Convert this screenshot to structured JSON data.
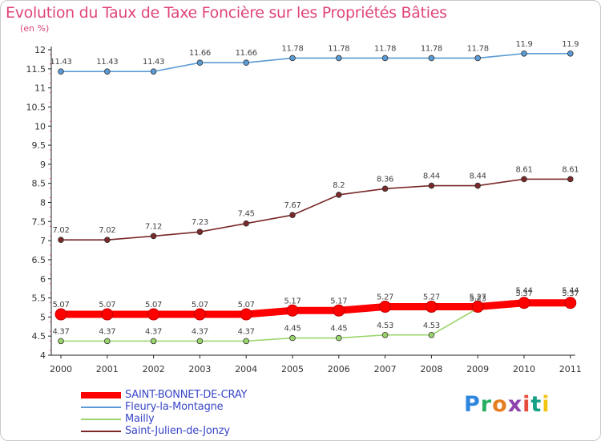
{
  "title": "Evolution du Taux de Taxe Foncière sur les Propriétés Bâties",
  "unit": "(en %)",
  "logo": "Proxiti",
  "chart_data": {
    "type": "line",
    "title": "Evolution du Taux de Taxe Foncière sur les Propriétés Bâties",
    "ylabel": "(en %)",
    "xlabel": "",
    "x": [
      "2000",
      "2001",
      "2002",
      "2003",
      "2004",
      "2005",
      "2006",
      "2007",
      "2008",
      "2009",
      "2010",
      "2011"
    ],
    "ylim": [
      4,
      12
    ],
    "yticks": [
      "4",
      "4.5",
      "5",
      "5.5",
      "6",
      "6.5",
      "7",
      "7.5",
      "8",
      "8.5",
      "9",
      "9.5",
      "10",
      "10.5",
      "11",
      "11.5",
      "12"
    ],
    "grid": false,
    "legend": "bottom-left",
    "series": [
      {
        "name": "SAINT-BONNET-DE-CRAY",
        "color": "#ff0000",
        "values": [
          5.07,
          5.07,
          5.07,
          5.07,
          5.07,
          5.17,
          5.17,
          5.27,
          5.27,
          5.27,
          5.37,
          5.37
        ],
        "labels": [
          "5.07",
          "5.07",
          "5.07",
          "5.07",
          "5.07",
          "5.17",
          "5.17",
          "5.27",
          "5.27",
          "5.27",
          "5.37",
          "5.37"
        ]
      },
      {
        "name": "Fleury-la-Montagne",
        "color": "#5b9bd5",
        "values": [
          11.43,
          11.43,
          11.43,
          11.66,
          11.66,
          11.78,
          11.78,
          11.78,
          11.78,
          11.78,
          11.9,
          11.9
        ],
        "labels": [
          "11.43",
          "11.43",
          "11.43",
          "11.66",
          "11.66",
          "11.78",
          "11.78",
          "11.78",
          "11.78",
          "11.78",
          "11.9",
          "11.9"
        ]
      },
      {
        "name": "Mailly",
        "color": "#9ad56b",
        "values": [
          4.37,
          4.37,
          4.37,
          4.37,
          4.37,
          4.45,
          4.45,
          4.53,
          4.53,
          5.23,
          5.44,
          5.44
        ],
        "labels": [
          "4.37",
          "4.37",
          "4.37",
          "4.37",
          "4.37",
          "4.45",
          "4.45",
          "4.53",
          "4.53",
          "5.23",
          "5.44",
          "5.44"
        ]
      },
      {
        "name": "Saint-Julien-de-Jonzy",
        "color": "#7a2828",
        "values": [
          7.02,
          7.02,
          7.12,
          7.23,
          7.45,
          7.67,
          8.2,
          8.36,
          8.44,
          8.44,
          8.61,
          8.61
        ],
        "labels": [
          "7.02",
          "7.02",
          "7.12",
          "7.23",
          "7.45",
          "7.67",
          "8.2",
          "8.36",
          "8.44",
          "8.44",
          "8.61",
          "8.61"
        ]
      }
    ]
  }
}
